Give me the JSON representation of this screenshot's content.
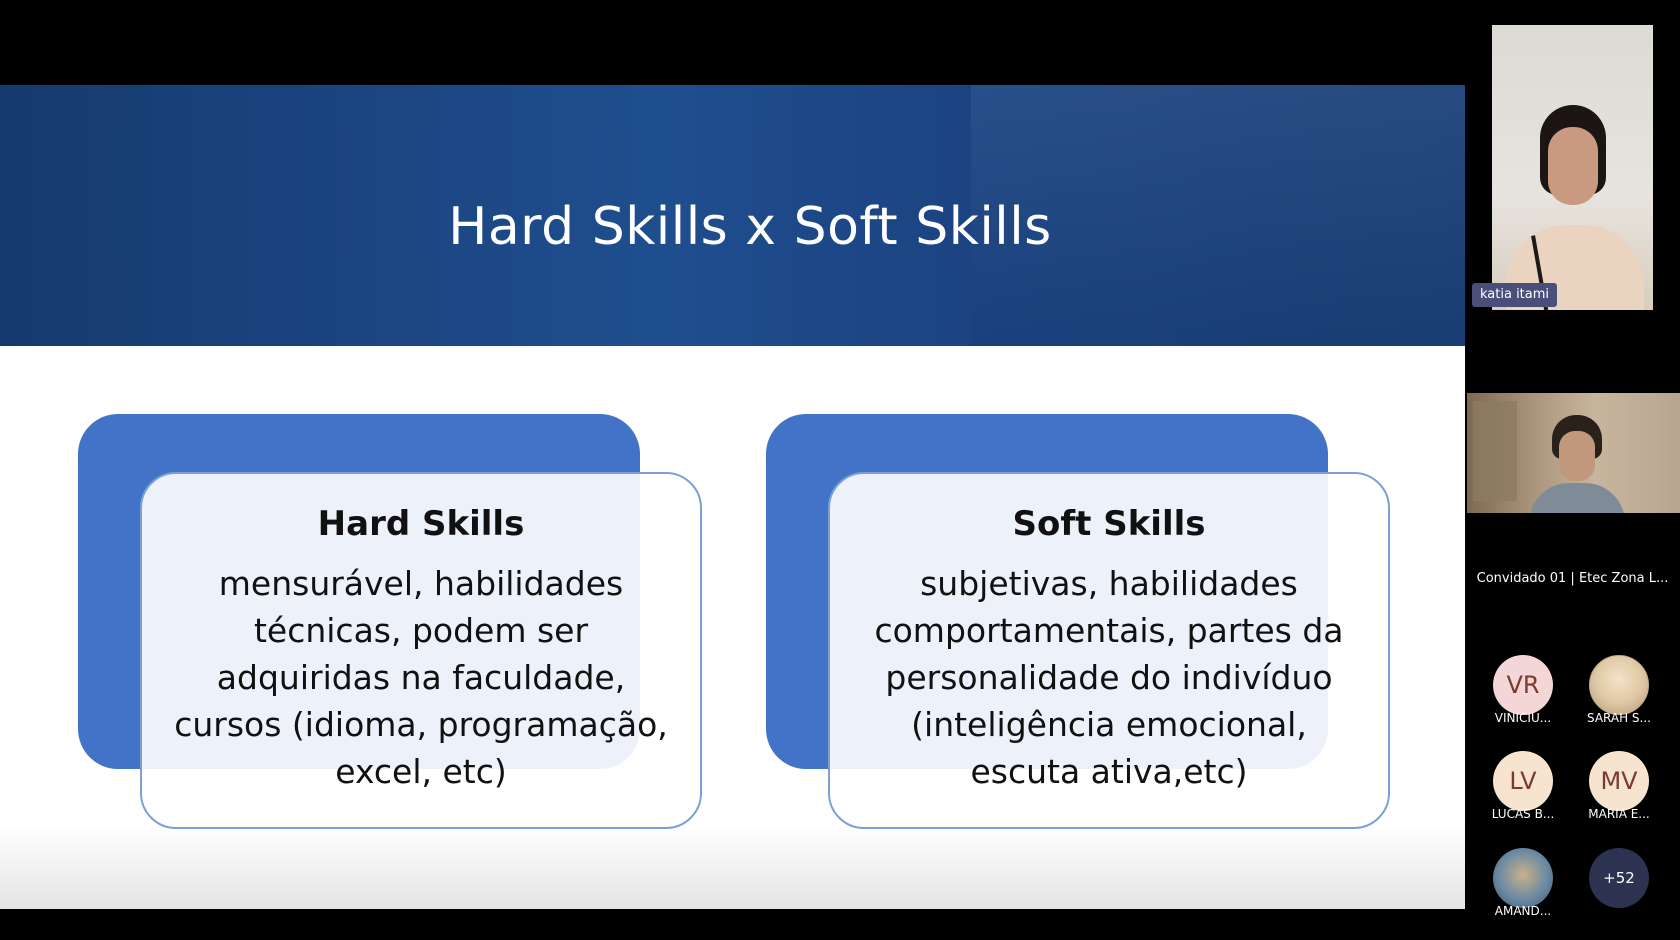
{
  "slide": {
    "title": "Hard Skills x Soft Skills",
    "cards": [
      {
        "title": "Hard Skills",
        "lines": [
          "mensurável, habilidades",
          "técnicas, podem ser",
          "adquiridas na faculdade,",
          "cursos (idioma, programação,",
          "excel, etc)"
        ]
      },
      {
        "title": "Soft Skills",
        "lines": [
          "subjetivas, habilidades",
          "comportamentais, partes da",
          "personalidade do indivíduo",
          "(inteligência emocional,",
          "escuta ativa,etc)"
        ]
      }
    ]
  },
  "participants": {
    "speaker_name": "katia itami",
    "guest_label": "Convidado 01 | Etec Zona L...",
    "avatars": [
      {
        "initials": "VR",
        "name": "VINICIU...",
        "color": "#f4d6d6"
      },
      {
        "initials": "",
        "name": "SARAH S...",
        "color": ""
      },
      {
        "initials": "LV",
        "name": "LUCAS B...",
        "color": "#f7e4cf"
      },
      {
        "initials": "MV",
        "name": "MARIA E...",
        "color": "#f7e4cf"
      },
      {
        "initials": "",
        "name": "AMAND...",
        "color": ""
      }
    ],
    "more_count": "+52"
  }
}
